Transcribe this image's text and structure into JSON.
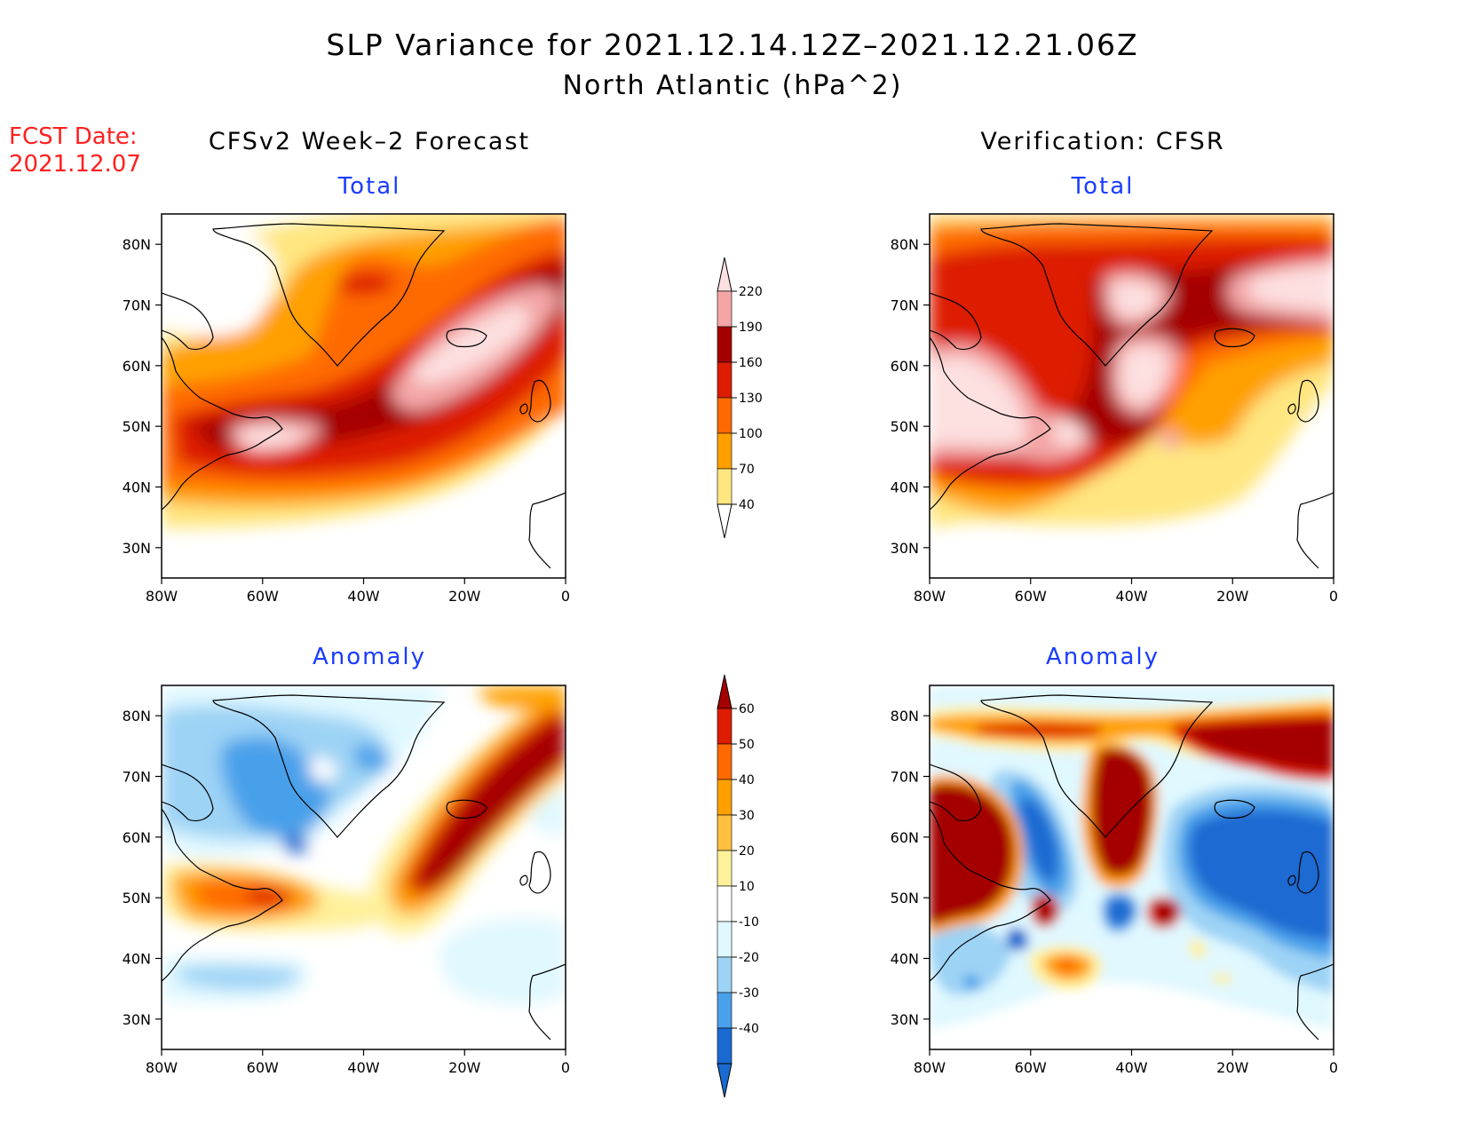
{
  "title": {
    "line1": "SLP Variance for 2021.12.14.12Z–2021.12.21.06Z",
    "line2": "North Atlantic (hPa^2)"
  },
  "fcst": {
    "line1": "FCST Date:",
    "line2": "2021.12.07"
  },
  "columns": {
    "left": "CFSv2 Week–2 Forecast",
    "right": "Verification: CFSR"
  },
  "panel_titles": {
    "total": "Total",
    "anomaly": "Anomaly"
  },
  "axes": {
    "lat_labels": [
      "80N",
      "70N",
      "60N",
      "50N",
      "40N",
      "30N"
    ],
    "lat_values": [
      80,
      70,
      60,
      50,
      40,
      30
    ],
    "lon_labels": [
      "80W",
      "60W",
      "40W",
      "20W",
      "0"
    ],
    "lon_values": [
      -80,
      -60,
      -40,
      -20,
      0
    ],
    "lat_range": [
      25,
      85
    ],
    "lon_range": [
      -80,
      0
    ]
  },
  "colorbars": {
    "total": {
      "labels": [
        "220",
        "190",
        "160",
        "130",
        "100",
        "70",
        "40"
      ],
      "colors": [
        "#fde0e0",
        "#f4a6a6",
        "#a50000",
        "#dd1c00",
        "#ff6a00",
        "#ffa000",
        "#ffe680"
      ]
    },
    "anomaly": {
      "labels": [
        "60",
        "50",
        "40",
        "30",
        "20",
        "10",
        "-10",
        "-20",
        "-30",
        "-40"
      ],
      "colors": [
        "#a50000",
        "#dd1c00",
        "#ff6a00",
        "#ffa000",
        "#ffc040",
        "#fff09a",
        "#ffffff",
        "#e0f8ff",
        "#9dd3f5",
        "#4aa0ea",
        "#1a6ad2"
      ]
    }
  },
  "chart_data": [
    {
      "type": "heatmap",
      "panel": "CFSv2 Week–2 Forecast - Total",
      "levels": [
        40,
        70,
        100,
        130,
        160,
        190,
        220
      ],
      "features": [
        {
          "value": 130,
          "shape": "storm track band from eastern Canada to Norwegian Sea"
        },
        {
          "value": 190,
          "near": "50N 55W"
        },
        {
          "value": 190,
          "near": "63N 25W"
        },
        {
          "value": 160,
          "near": "74N 40W"
        }
      ]
    },
    {
      "type": "heatmap",
      "panel": "Verification: CFSR - Total",
      "levels": [
        40,
        70,
        100,
        130,
        160,
        190,
        220
      ],
      "features": [
        {
          "value": 190,
          "near": "55N 75W"
        },
        {
          "value": 190,
          "near": "70N 35W"
        },
        {
          "value": 190,
          "near": "60N 35W"
        },
        {
          "value": 190,
          "near": "72N 5W"
        },
        {
          "value": 190,
          "near": "48N 52W"
        }
      ]
    },
    {
      "type": "heatmap",
      "panel": "CFSv2 Week–2 Forecast - Anomaly",
      "levels": [
        -40,
        -30,
        -20,
        -10,
        10,
        20,
        30,
        40,
        50,
        60
      ],
      "features": [
        {
          "value": 60,
          "shape": "band from 50N 30W to 80N 0"
        },
        {
          "value": 40,
          "near": "49N 60W"
        },
        {
          "value": -30,
          "near": "68N 55W"
        },
        {
          "value": -20,
          "near": "38N 65W"
        }
      ]
    },
    {
      "type": "heatmap",
      "panel": "Verification: CFSR - Anomaly",
      "levels": [
        -40,
        -30,
        -20,
        -10,
        10,
        20,
        30,
        40,
        50,
        60
      ],
      "features": [
        {
          "value": 60,
          "near": "57N 75W"
        },
        {
          "value": 60,
          "near": "63N 37W"
        },
        {
          "value": 60,
          "near": "73N 10W"
        },
        {
          "value": -40,
          "near": "58N 20W"
        },
        {
          "value": -40,
          "near": "58N 53W"
        },
        {
          "value": 40,
          "near": "40N 47W"
        }
      ]
    }
  ]
}
